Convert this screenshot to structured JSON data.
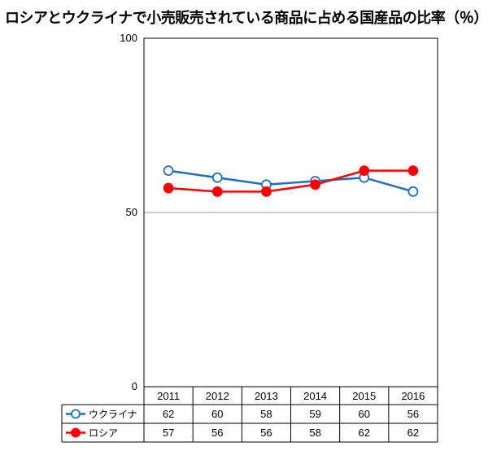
{
  "title": "ロシアとウクライナで小売販売されている商品に占める国産品の比率（％）",
  "colors": {
    "ukraine": "#1f6fbf",
    "russia": "#ff0000",
    "gridline": "#999999",
    "frame": "#000000"
  },
  "chart_data": {
    "type": "line",
    "title": "ロシアとウクライナで小売販売されている商品に占める国産品の比率（％）",
    "categories": [
      "2011",
      "2012",
      "2013",
      "2014",
      "2015",
      "2016"
    ],
    "series": [
      {
        "name": "ウクライナ",
        "values": [
          62,
          60,
          58,
          59,
          60,
          56
        ],
        "marker": "open-circle",
        "color": "#1f6fbf"
      },
      {
        "name": "ロシア",
        "values": [
          57,
          56,
          56,
          58,
          62,
          62
        ],
        "marker": "filled-circle",
        "color": "#ff0000"
      }
    ],
    "ylim": [
      0,
      100
    ],
    "yticks": [
      0,
      50,
      100
    ],
    "gridlines": [
      50
    ],
    "legend": "data-table-below"
  }
}
